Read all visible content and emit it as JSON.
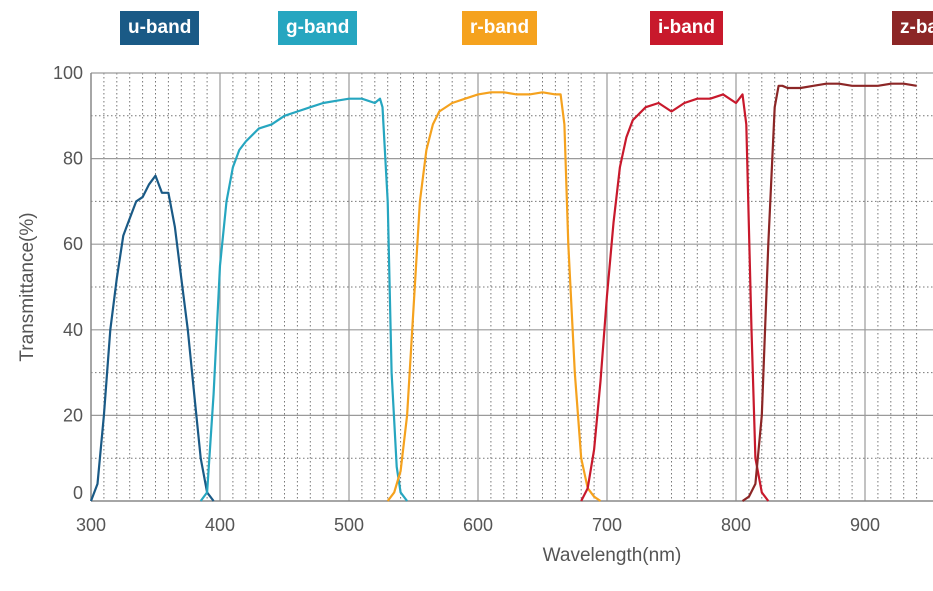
{
  "chart_data": {
    "type": "line",
    "title": "",
    "xlabel": "Wavelength(nm)",
    "ylabel": "Transmittance(%)",
    "xlim": [
      300,
      940
    ],
    "ylim": [
      0,
      100
    ],
    "xticks": [
      "300",
      "400",
      "500",
      "600",
      "700",
      "800",
      "900"
    ],
    "yticks": [
      "0",
      "20",
      "40",
      "60",
      "80",
      "100"
    ],
    "grid": true,
    "legend_position": "top",
    "series": [
      {
        "name": "u-band",
        "color": "#1a5a86",
        "x": [
          300,
          305,
          310,
          315,
          320,
          325,
          330,
          335,
          340,
          345,
          350,
          355,
          360,
          365,
          370,
          375,
          380,
          385,
          390,
          395
        ],
        "y": [
          0,
          4,
          20,
          40,
          52,
          62,
          66,
          70,
          71,
          74,
          76,
          72,
          72,
          64,
          52,
          40,
          25,
          10,
          2,
          0
        ]
      },
      {
        "name": "g-band",
        "color": "#26a6c0",
        "x": [
          385,
          390,
          395,
          400,
          405,
          410,
          415,
          420,
          430,
          440,
          450,
          460,
          470,
          480,
          490,
          500,
          510,
          520,
          524,
          526,
          530,
          533,
          537,
          540,
          545
        ],
        "y": [
          0,
          2,
          25,
          55,
          70,
          78,
          82,
          84,
          87,
          88,
          90,
          91,
          92,
          93,
          93.5,
          94,
          94,
          93,
          94,
          92,
          70,
          30,
          8,
          2,
          0
        ]
      },
      {
        "name": "r-band",
        "color": "#f5a21e",
        "x": [
          530,
          535,
          540,
          545,
          550,
          555,
          560,
          565,
          570,
          580,
          590,
          600,
          610,
          620,
          630,
          640,
          650,
          660,
          664,
          667,
          670,
          675,
          680,
          685,
          690,
          695
        ],
        "y": [
          0,
          2,
          7,
          20,
          45,
          70,
          82,
          88,
          91,
          93,
          94,
          95,
          95.5,
          95.5,
          95,
          95,
          95.5,
          95,
          95,
          88,
          60,
          30,
          10,
          3,
          1,
          0
        ]
      },
      {
        "name": "i-band",
        "color": "#c8192c",
        "x": [
          680,
          685,
          690,
          695,
          700,
          705,
          710,
          715,
          720,
          730,
          740,
          750,
          760,
          770,
          780,
          790,
          800,
          805,
          808,
          812,
          815,
          820,
          825
        ],
        "y": [
          0,
          3,
          12,
          28,
          48,
          65,
          78,
          85,
          89,
          92,
          93,
          91,
          93,
          94,
          94,
          95,
          93,
          95,
          88,
          40,
          10,
          2,
          0
        ]
      },
      {
        "name": "z-band",
        "color": "#8c2626",
        "x": [
          805,
          810,
          815,
          820,
          825,
          830,
          833,
          836,
          840,
          850,
          860,
          870,
          880,
          890,
          900,
          910,
          920,
          930,
          940
        ],
        "y": [
          0,
          1,
          4,
          20,
          60,
          92,
          97,
          97,
          96.5,
          96.5,
          97,
          97.5,
          97.5,
          97,
          97,
          97,
          97.5,
          97.5,
          97
        ]
      }
    ]
  }
}
